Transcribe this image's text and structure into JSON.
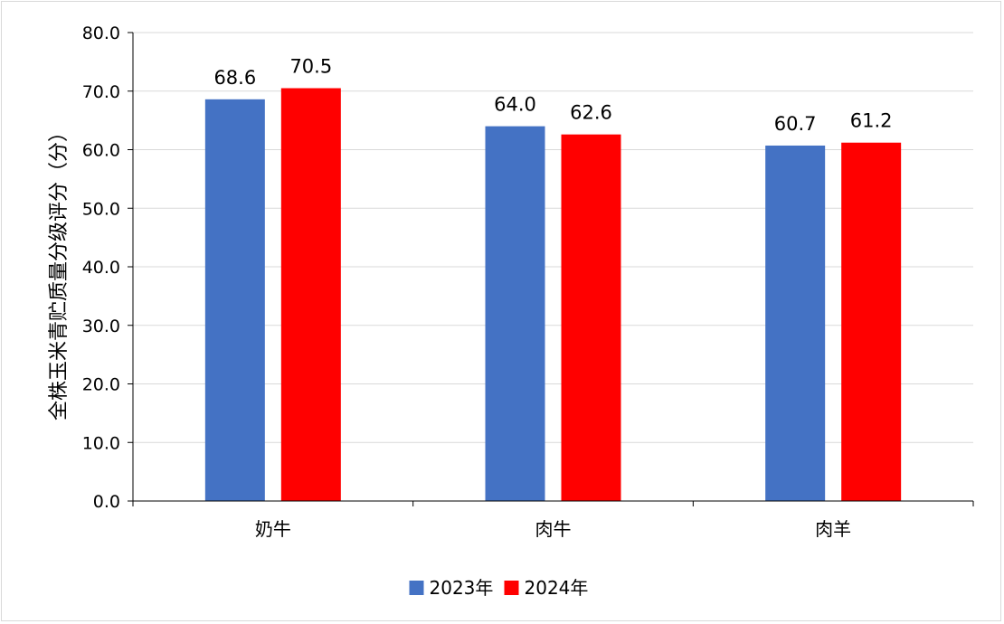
{
  "chart_data": {
    "type": "bar",
    "categories": [
      "奶牛",
      "肉牛",
      "肉羊"
    ],
    "series": [
      {
        "name": "2023年",
        "color": "#4472C4",
        "values": [
          68.6,
          64.0,
          60.7
        ]
      },
      {
        "name": "2024年",
        "color": "#FF0000",
        "values": [
          70.5,
          62.6,
          61.2
        ]
      }
    ],
    "ylabel": "全株玉米青贮质量分级评分（分）",
    "ylim": [
      0,
      80
    ],
    "yticks": [
      "0.0",
      "10.0",
      "20.0",
      "30.0",
      "40.0",
      "50.0",
      "60.0",
      "70.0",
      "80.0"
    ],
    "data_labels": [
      [
        "68.6",
        "64.0",
        "60.7"
      ],
      [
        "70.5",
        "62.6",
        "61.2"
      ]
    ],
    "grid": true,
    "legend_position": "bottom"
  }
}
